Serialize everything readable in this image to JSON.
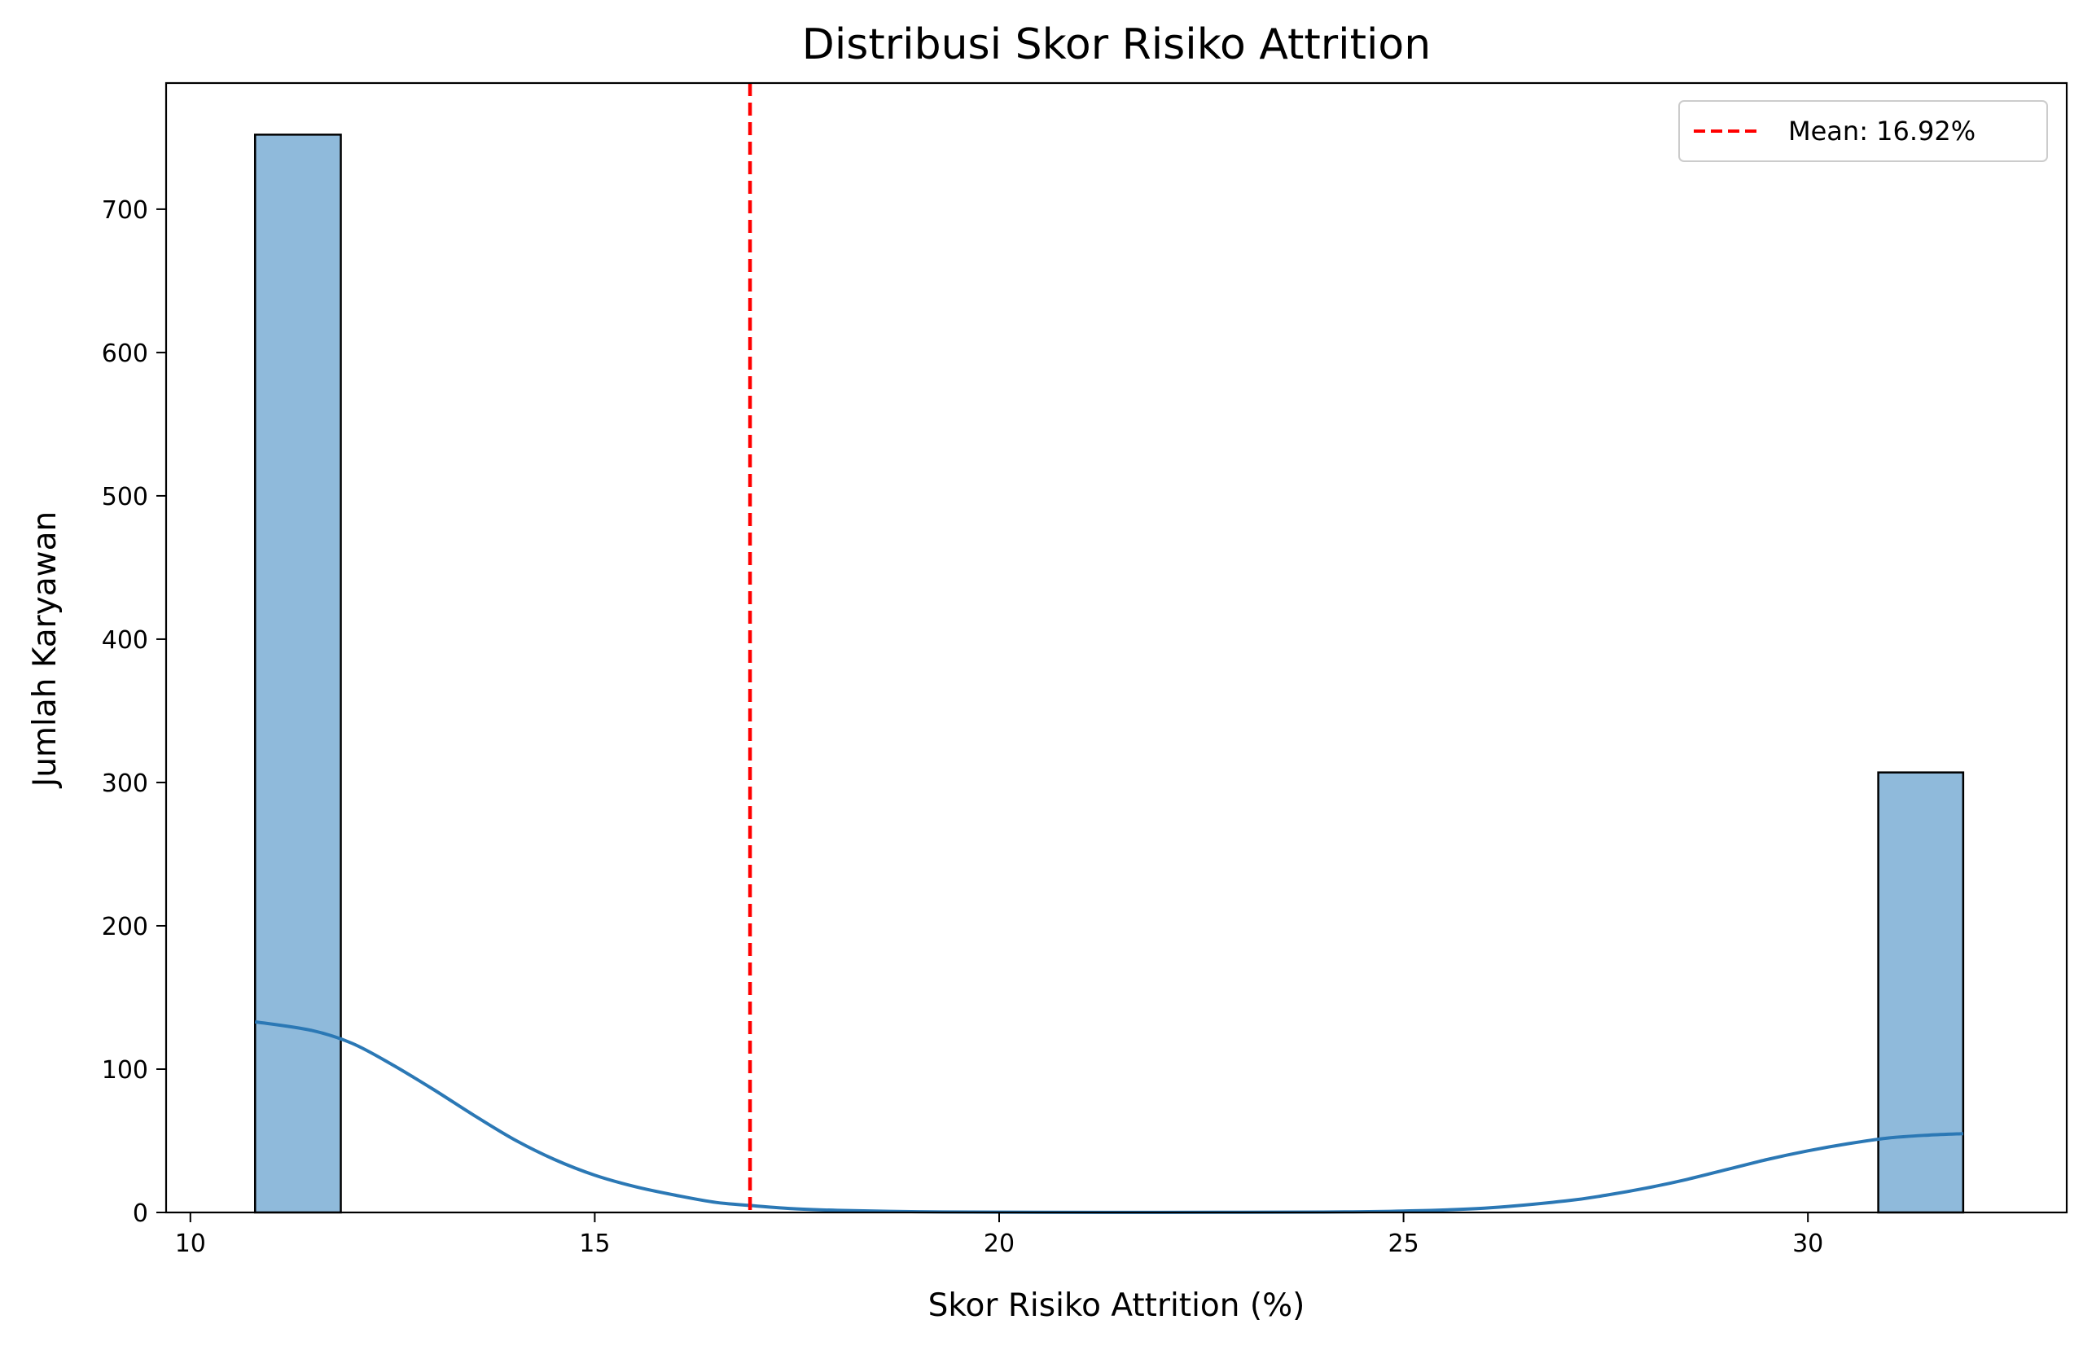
{
  "chart_data": {
    "type": "bar",
    "title": "Distribusi Skor Risiko Attrition",
    "xlabel": "Skor Risiko Attrition (%)",
    "ylabel": "Jumlah Karyawan",
    "xlim": [
      9.7,
      33.2
    ],
    "ylim": [
      0,
      788
    ],
    "xticks": [
      10,
      15,
      20,
      25,
      30
    ],
    "yticks": [
      0,
      100,
      200,
      300,
      400,
      500,
      600,
      700
    ],
    "grid": false,
    "legend_position": "top-right",
    "bars": [
      {
        "x0": 10.8,
        "x1": 11.86,
        "count": 752
      },
      {
        "x0": 30.87,
        "x1": 31.92,
        "count": 307
      }
    ],
    "kde": {
      "x": [
        10.8,
        11.5,
        12.0,
        12.5,
        13.0,
        13.5,
        14.0,
        14.5,
        15.0,
        15.5,
        16.0,
        16.5,
        17.0,
        17.5,
        18.0,
        19.0,
        20.0,
        22.0,
        24.0,
        25.0,
        26.0,
        27.0,
        27.5,
        28.0,
        28.5,
        29.0,
        29.5,
        30.0,
        30.5,
        31.0,
        31.5,
        31.92
      ],
      "y": [
        133,
        127,
        118,
        103,
        86,
        68,
        51,
        37,
        26,
        18,
        12,
        7,
        4.5,
        2.5,
        1.5,
        0.5,
        0.2,
        0.1,
        0.3,
        1,
        3,
        8,
        12,
        17,
        23,
        30,
        37,
        43,
        48,
        52,
        54,
        55
      ]
    },
    "mean_line": {
      "x": 16.92,
      "label": "Mean: 16.92%",
      "color": "#ff0000"
    },
    "colors": {
      "bar_fill": "#8fbadb",
      "bar_edge": "#000000",
      "kde": "#2b78b5",
      "mean": "#ff0000"
    }
  }
}
